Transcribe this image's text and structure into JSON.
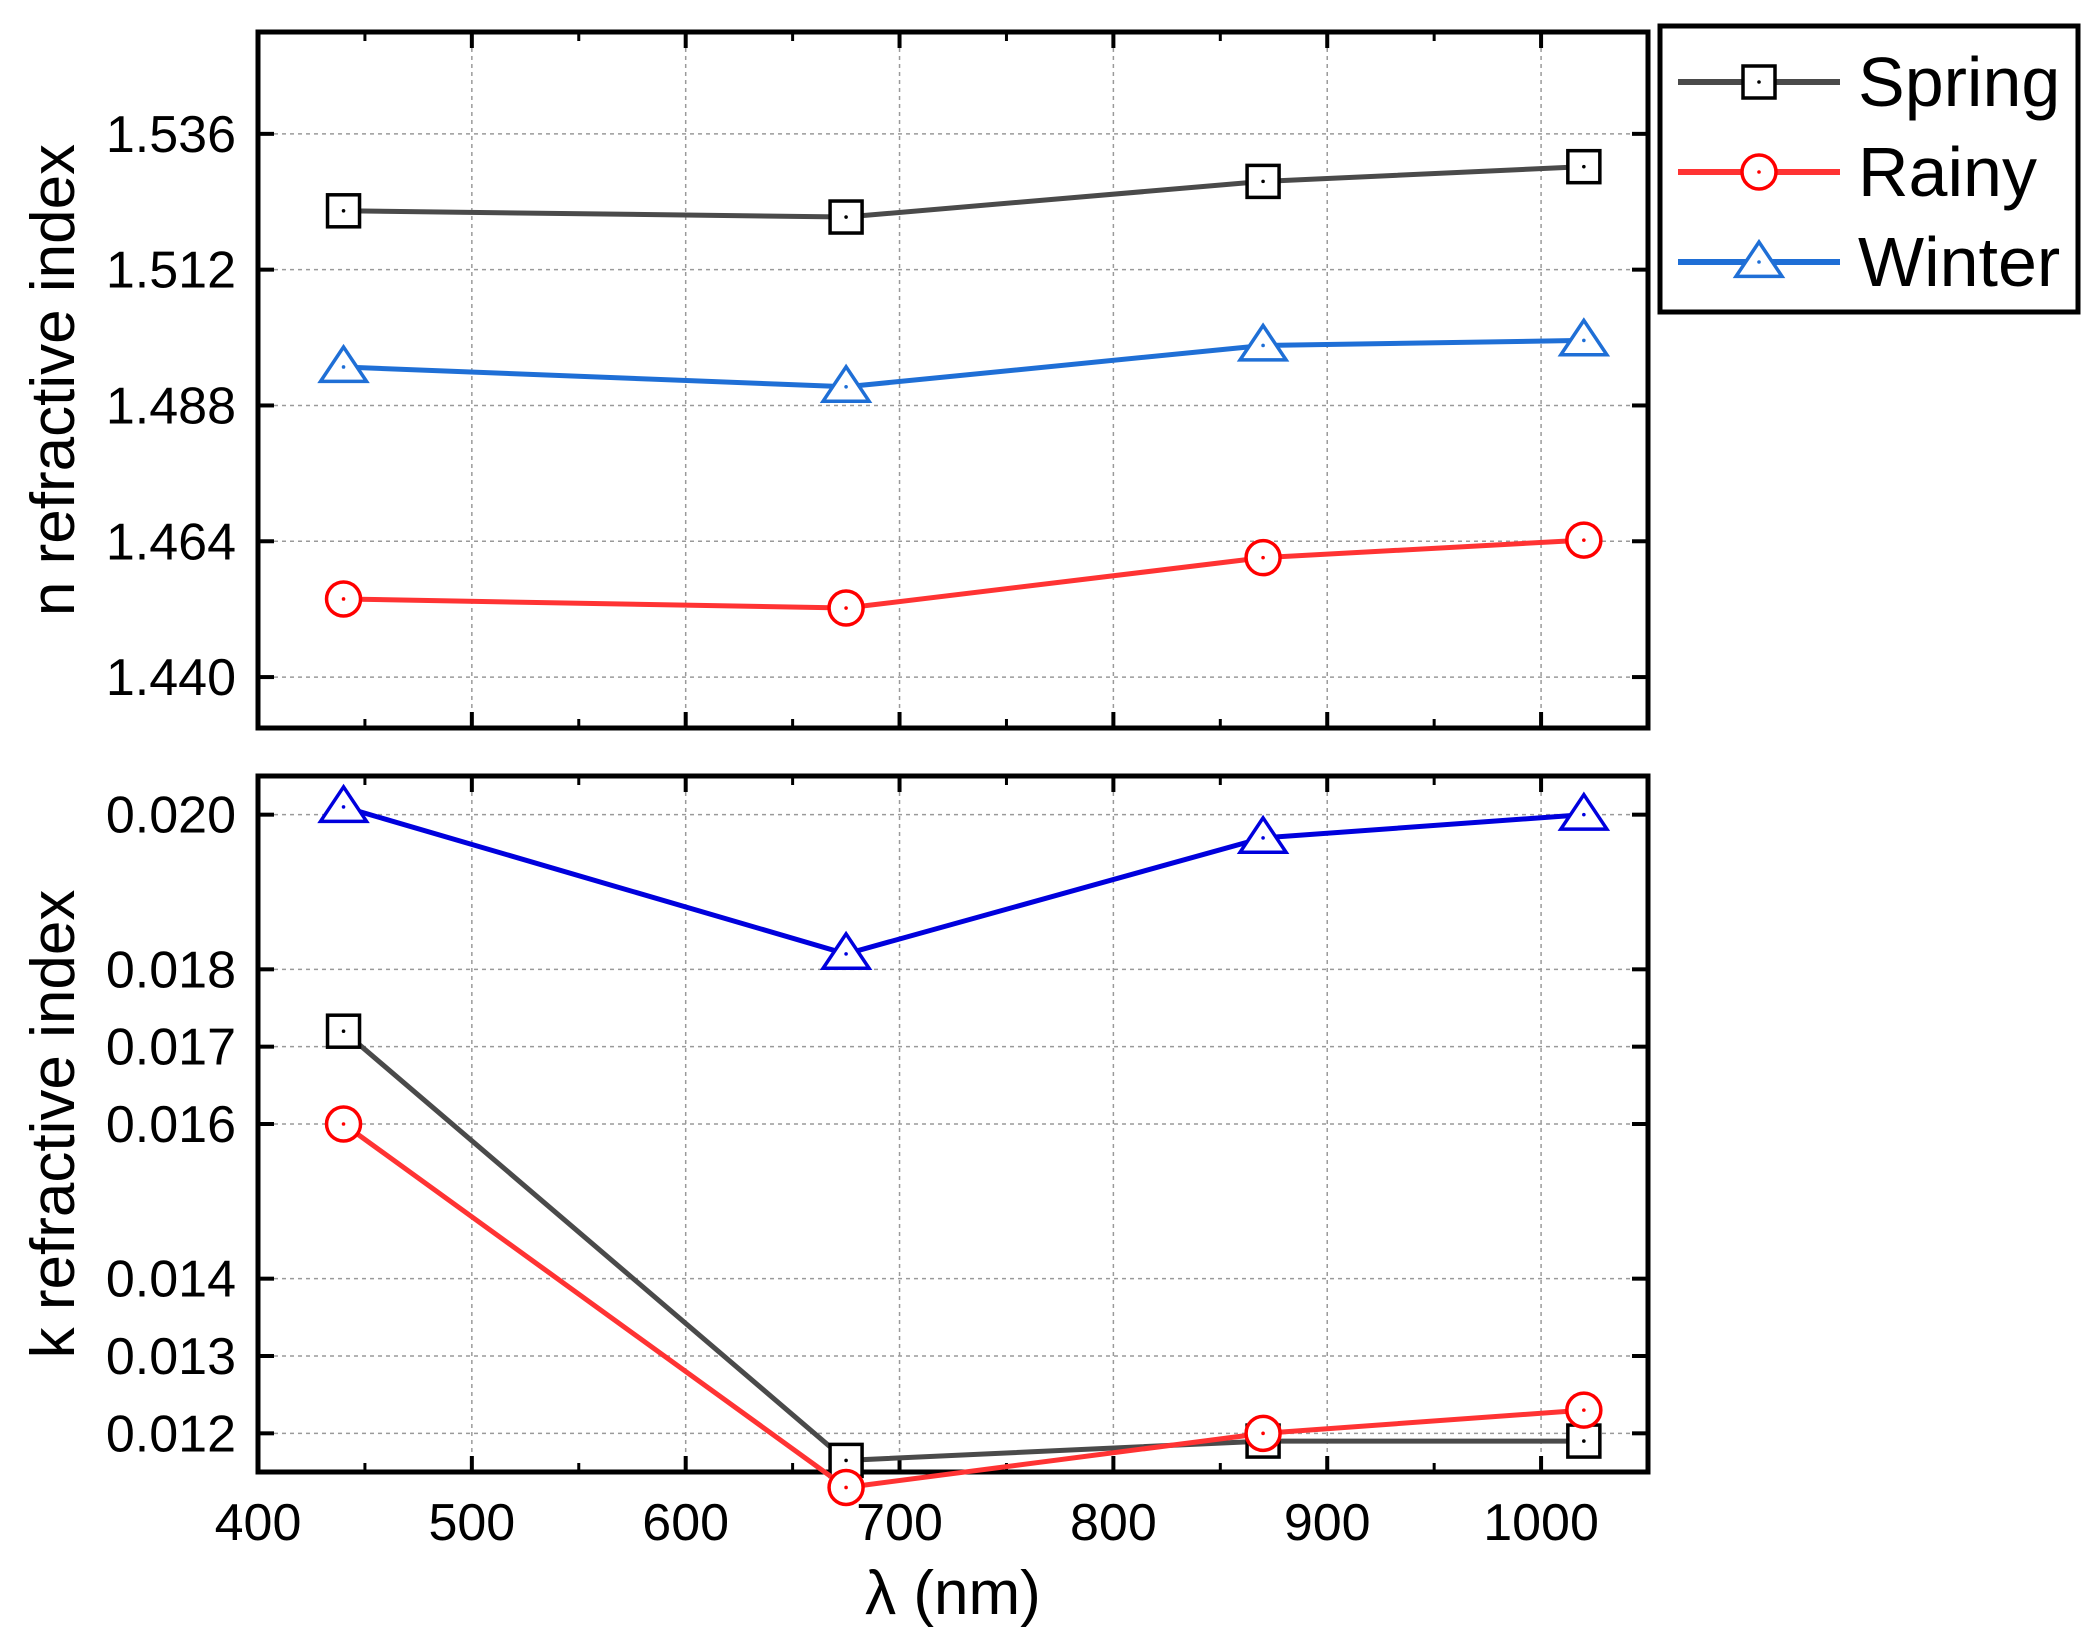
{
  "chart_data": [
    {
      "type": "line",
      "panel": "top",
      "ylabel": "n refractive index",
      "xlabel": "",
      "xlim": [
        400,
        1050
      ],
      "ylim": [
        1.431,
        1.554
      ],
      "x_ticks": [
        400,
        500,
        600,
        700,
        800,
        900,
        1000
      ],
      "y_ticks": [
        "1.440",
        "1.464",
        "1.488",
        "1.512",
        "1.536"
      ],
      "grid": true,
      "x": [
        440,
        675,
        870,
        1020
      ],
      "series": [
        {
          "name": "Spring",
          "marker": "square",
          "color": "#4a4a4a",
          "marker_color": "#000000",
          "values": [
            1.5224,
            1.5213,
            1.5276,
            1.5302
          ]
        },
        {
          "name": "Rainy",
          "marker": "circle",
          "color": "#ff3333",
          "marker_color": "#ff0000",
          "values": [
            1.4538,
            1.4522,
            1.4611,
            1.4642
          ]
        },
        {
          "name": "Winter",
          "marker": "triangle",
          "color": "#1f6fd6",
          "marker_color": "#1f6fd6",
          "values": [
            1.4948,
            1.4913,
            1.4986,
            1.4995
          ]
        }
      ]
    },
    {
      "type": "line",
      "panel": "bottom",
      "ylabel": "k refractive index",
      "xlabel": "λ (nm)",
      "xlim": [
        400,
        1050
      ],
      "ylim": [
        0.0115,
        0.0205
      ],
      "x_ticks": [
        "400",
        "500",
        "600",
        "700",
        "800",
        "900",
        "1000"
      ],
      "y_ticks": [
        "0.012",
        "0.013",
        "0.014",
        "0.016",
        "0.017",
        "0.018",
        "0.020"
      ],
      "grid": true,
      "x": [
        440,
        675,
        870,
        1020
      ],
      "series": [
        {
          "name": "Spring",
          "marker": "square",
          "color": "#4a4a4a",
          "marker_color": "#000000",
          "values": [
            0.0172,
            0.01165,
            0.0119,
            0.0119
          ]
        },
        {
          "name": "Rainy",
          "marker": "circle",
          "color": "#ff3333",
          "marker_color": "#ff0000",
          "values": [
            0.016,
            0.0113,
            0.012,
            0.0123
          ]
        },
        {
          "name": "Winter",
          "marker": "triangle",
          "color": "#0000dd",
          "marker_color": "#0000dd",
          "values": [
            0.0201,
            0.0182,
            0.0197,
            0.02
          ]
        }
      ]
    }
  ],
  "legend": {
    "placement": "top-right",
    "entries": [
      {
        "label": "Spring",
        "marker": "square",
        "color": "#4a4a4a",
        "marker_color": "#000000"
      },
      {
        "label": "Rainy",
        "marker": "circle",
        "color": "#ff3333",
        "marker_color": "#ff0000"
      },
      {
        "label": "Winter",
        "marker": "triangle",
        "color": "#1f6fd6",
        "marker_color": "#1f6fd6"
      }
    ]
  }
}
